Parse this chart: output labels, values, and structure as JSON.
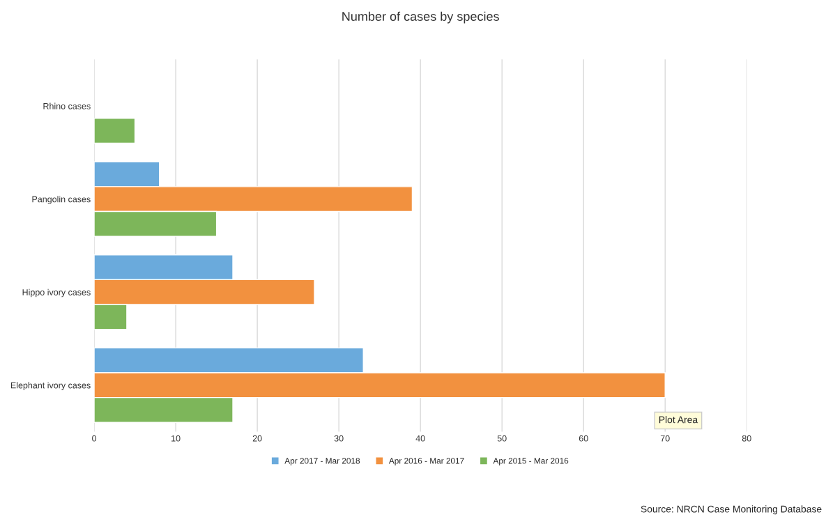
{
  "chart_data": {
    "type": "bar",
    "orientation": "horizontal",
    "title": "Number of cases by species",
    "categories": [
      "Rhino cases",
      "Pangolin cases",
      "Hippo ivory cases",
      "Elephant ivory cases"
    ],
    "series": [
      {
        "name": "Apr 2017 - Mar 2018",
        "color": "#6aaadc",
        "values": [
          null,
          8,
          17,
          33
        ]
      },
      {
        "name": "Apr 2016 - Mar 2017",
        "color": "#f2913f",
        "values": [
          null,
          39,
          27,
          70
        ]
      },
      {
        "name": "Apr 2015 - Mar 2016",
        "color": "#7db65a",
        "values": [
          5,
          15,
          4,
          17
        ]
      }
    ],
    "xlim": [
      0,
      80
    ],
    "xticks": [
      0,
      10,
      20,
      30,
      40,
      50,
      60,
      70,
      80
    ],
    "grid": "x",
    "legend": "bottom",
    "annotations": [
      "Plot Area",
      "Source: NRCN Case Monitoring Database"
    ]
  }
}
